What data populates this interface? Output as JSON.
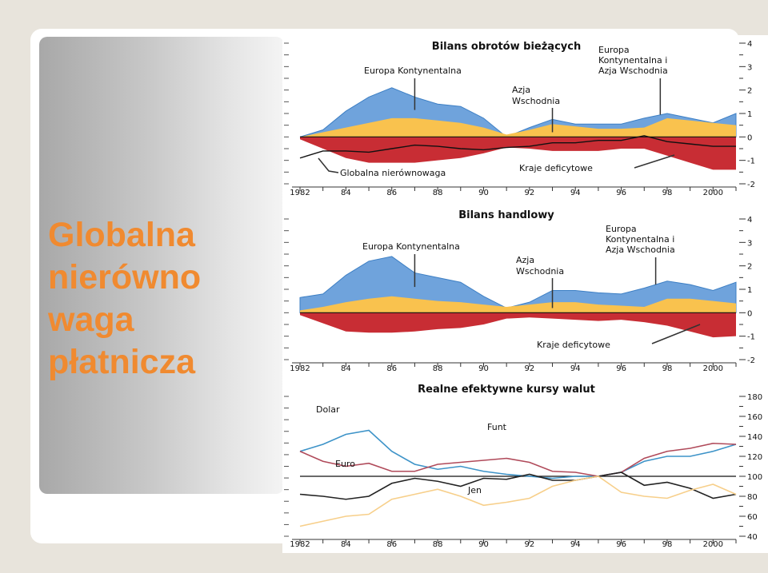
{
  "slide": {
    "title_lines": [
      "Globalna",
      "nierówno",
      "waga",
      "płatnicza"
    ]
  },
  "colors": {
    "europe_kontynentalna": "#6fa3dc",
    "azja_wschodnia": "#f9c24e",
    "kraje_deficytowe": "#c82d34",
    "dolar": "#3d93c8",
    "funt": "#b04a5a",
    "euro": "#222222",
    "jen": "#f7cf8a"
  },
  "chart_data": [
    {
      "type": "area",
      "title": "Bilans obrotów bieżących",
      "x": [
        1982,
        1983,
        1984,
        1985,
        1986,
        1987,
        1988,
        1989,
        1990,
        1991,
        1992,
        1993,
        1994,
        1995,
        1996,
        1997,
        1998,
        1999,
        2000,
        2001
      ],
      "ylim": [
        -2,
        4
      ],
      "yticks": [
        -2,
        -1,
        0,
        1,
        2,
        3,
        4
      ],
      "ytick_labels": [
        "-2",
        "-1",
        "0",
        "1",
        "2",
        "3",
        "4"
      ],
      "xtick_labels": [
        "1982",
        "84",
        "86",
        "88",
        "90",
        "92",
        "94",
        "96",
        "98",
        "2000"
      ],
      "series": [
        {
          "name": "Europa Kontynentalna",
          "values": [
            0,
            0.3,
            1.1,
            1.7,
            2.1,
            1.7,
            1.4,
            1.3,
            0.8,
            0,
            0.4,
            0.75,
            0.55,
            0.55,
            0.55,
            0.8,
            1.0,
            0.8,
            0.6,
            1.0
          ]
        },
        {
          "name": "Azja Wschodnia",
          "values": [
            0,
            0.2,
            0.4,
            0.6,
            0.8,
            0.8,
            0.7,
            0.6,
            0.4,
            0.1,
            0.3,
            0.55,
            0.45,
            0.35,
            0.35,
            0.4,
            0.8,
            0.7,
            0.6,
            0.5
          ]
        },
        {
          "name": "Kraje deficytowe",
          "values": [
            -0.1,
            -0.5,
            -0.9,
            -1.1,
            -1.1,
            -1.1,
            -1.0,
            -0.9,
            -0.7,
            -0.45,
            -0.5,
            -0.6,
            -0.6,
            -0.6,
            -0.5,
            -0.5,
            -0.8,
            -1.1,
            -1.4,
            -1.4
          ]
        },
        {
          "name": "Globalna nierównowaga",
          "values": [
            -0.9,
            -0.6,
            -0.6,
            -0.65,
            -0.5,
            -0.35,
            -0.4,
            -0.5,
            -0.55,
            -0.45,
            -0.4,
            -0.25,
            -0.25,
            -0.15,
            -0.15,
            0.05,
            -0.2,
            -0.3,
            -0.4,
            -0.4
          ]
        }
      ],
      "annotations": [
        "Europa Kontynentalna",
        "Azja Wschodnia",
        "Europa Kontynentalna i Azja Wschodnia",
        "Globalna nierównowaga",
        "Kraje deficytowe"
      ]
    },
    {
      "type": "area",
      "title": "Bilans handlowy",
      "x": [
        1982,
        1983,
        1984,
        1985,
        1986,
        1987,
        1988,
        1989,
        1990,
        1991,
        1992,
        1993,
        1994,
        1995,
        1996,
        1997,
        1998,
        1999,
        2000,
        2001
      ],
      "ylim": [
        -2,
        4
      ],
      "yticks": [
        -2,
        -1,
        0,
        1,
        2,
        3,
        4
      ],
      "ytick_labels": [
        "-2",
        "-1",
        "0",
        "1",
        "2",
        "3",
        "4"
      ],
      "xtick_labels": [
        "1982",
        "84",
        "86",
        "88",
        "90",
        "92",
        "94",
        "96",
        "98",
        "2000"
      ],
      "series": [
        {
          "name": "Europa Kontynentalna",
          "values": [
            0.65,
            0.8,
            1.6,
            2.2,
            2.4,
            1.7,
            1.5,
            1.3,
            0.7,
            0.2,
            0.45,
            0.95,
            0.95,
            0.85,
            0.8,
            1.05,
            1.35,
            1.2,
            0.95,
            1.3
          ]
        },
        {
          "name": "Azja Wschodnia",
          "values": [
            0.1,
            0.25,
            0.45,
            0.6,
            0.7,
            0.6,
            0.5,
            0.45,
            0.35,
            0.25,
            0.35,
            0.45,
            0.45,
            0.35,
            0.3,
            0.25,
            0.6,
            0.6,
            0.5,
            0.4
          ]
        },
        {
          "name": "Kraje deficytowe",
          "values": [
            -0.1,
            -0.45,
            -0.8,
            -0.85,
            -0.85,
            -0.8,
            -0.7,
            -0.65,
            -0.5,
            -0.25,
            -0.2,
            -0.25,
            -0.3,
            -0.35,
            -0.3,
            -0.4,
            -0.55,
            -0.8,
            -1.05,
            -1.0
          ]
        }
      ],
      "annotations": [
        "Europa Kontynentalna",
        "Azja Wschodnia",
        "Europa Kontynentalna i Azja Wschodnia",
        "Kraje deficytowe"
      ]
    },
    {
      "type": "line",
      "title": "Realne efektywne kursy walut",
      "x": [
        1982,
        1983,
        1984,
        1985,
        1986,
        1987,
        1988,
        1989,
        1990,
        1991,
        1992,
        1993,
        1994,
        1995,
        1996,
        1997,
        1998,
        1999,
        2000,
        2001
      ],
      "ylim": [
        40,
        180
      ],
      "yticks": [
        40,
        60,
        80,
        100,
        120,
        140,
        160,
        180
      ],
      "ytick_labels": [
        "40",
        "60",
        "80",
        "100",
        "120",
        "140",
        "160",
        "180"
      ],
      "xtick_labels": [
        "1982",
        "84",
        "86",
        "88",
        "90",
        "92",
        "94",
        "96",
        "98",
        "2000"
      ],
      "series": [
        {
          "name": "Dolar",
          "values": [
            125,
            132,
            142,
            146,
            125,
            112,
            107,
            110,
            105,
            102,
            100,
            98,
            100,
            100,
            104,
            115,
            120,
            120,
            125,
            132
          ]
        },
        {
          "name": "Funt",
          "values": [
            125,
            115,
            110,
            113,
            105,
            105,
            112,
            114,
            116,
            118,
            114,
            105,
            104,
            100,
            104,
            118,
            125,
            128,
            133,
            132
          ]
        },
        {
          "name": "Euro",
          "values": [
            82,
            80,
            77,
            80,
            93,
            98,
            95,
            90,
            98,
            97,
            102,
            96,
            96,
            100,
            104,
            91,
            94,
            88,
            78,
            82
          ]
        },
        {
          "name": "Jen",
          "values": [
            50,
            55,
            60,
            62,
            77,
            82,
            87,
            80,
            71,
            74,
            78,
            90,
            96,
            100,
            84,
            80,
            78,
            86,
            92,
            82
          ]
        }
      ]
    }
  ]
}
